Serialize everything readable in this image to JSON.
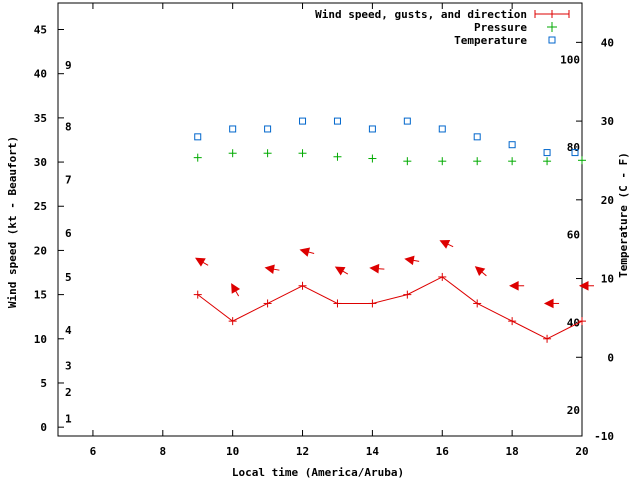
{
  "chart_data": {
    "type": "line",
    "xlabel": "Local time (America/Aruba)",
    "ylabel": "Wind speed (kt - Beaufort)",
    "y2label": "Temperature (C - F)",
    "xlim": [
      5,
      20
    ],
    "ylim": [
      -1,
      48
    ],
    "y2lim": [
      -10,
      45
    ],
    "x_ticks": [
      6,
      8,
      10,
      12,
      14,
      16,
      18,
      20
    ],
    "y_ticks": [
      0,
      5,
      10,
      15,
      20,
      25,
      30,
      35,
      40,
      45
    ],
    "y2_ticks": [
      -10,
      0,
      10,
      20,
      30,
      40
    ],
    "beaufort_labels": [
      {
        "label": "1",
        "y": 1
      },
      {
        "label": "2",
        "y": 4
      },
      {
        "label": "3",
        "y": 7
      },
      {
        "label": "4",
        "y": 11
      },
      {
        "label": "5",
        "y": 17
      },
      {
        "label": "6",
        "y": 22
      },
      {
        "label": "7",
        "y": 28
      },
      {
        "label": "8",
        "y": 34
      },
      {
        "label": "9",
        "y": 41
      }
    ],
    "fahrenheit_labels": [
      {
        "label": "20",
        "y2": -6.7
      },
      {
        "label": "40",
        "y2": 4.4
      },
      {
        "label": "60",
        "y2": 15.6
      },
      {
        "label": "80",
        "y2": 26.7
      },
      {
        "label": "100",
        "y2": 37.8
      }
    ],
    "legend": [
      {
        "label": "Wind speed, gusts, and direction",
        "color": "#dd0000",
        "marker": "line-plus"
      },
      {
        "label": "Pressure",
        "color": "#00aa00",
        "marker": "plus"
      },
      {
        "label": "Temperature",
        "color": "#0066cc",
        "marker": "square"
      }
    ],
    "series": [
      {
        "name": "Wind speed, gusts, and direction",
        "color": "#dd0000",
        "x": [
          9,
          10,
          11,
          12,
          13,
          14,
          15,
          16,
          17,
          18,
          19,
          20
        ],
        "values": [
          15,
          12,
          14,
          16,
          14,
          14,
          15,
          17,
          14,
          12,
          10,
          12
        ]
      },
      {
        "name": "Wind direction arrows",
        "color": "#dd0000",
        "x": [
          9,
          10,
          11,
          12,
          13,
          14,
          15,
          16,
          17,
          18,
          19,
          20
        ],
        "values": [
          19,
          16,
          18,
          20,
          18,
          18,
          19,
          21,
          18,
          16,
          14,
          16
        ],
        "direction_deg": [
          120,
          150,
          100,
          105,
          120,
          95,
          100,
          115,
          130,
          90,
          90,
          90
        ]
      },
      {
        "name": "Pressure",
        "color": "#00aa00",
        "x": [
          9,
          10,
          11,
          12,
          13,
          14,
          15,
          16,
          17,
          18,
          19,
          20
        ],
        "values": [
          30.5,
          31,
          31,
          31,
          30.6,
          30.4,
          30.1,
          30.1,
          30.1,
          30.1,
          30.1,
          30.2
        ]
      },
      {
        "name": "Temperature",
        "color": "#0066cc",
        "x": [
          9,
          10,
          11,
          12,
          13,
          14,
          15,
          16,
          17,
          18,
          19,
          19.8
        ],
        "values": [
          28,
          29,
          29,
          30,
          30,
          29,
          30,
          29,
          28,
          27,
          26,
          26
        ]
      }
    ]
  }
}
